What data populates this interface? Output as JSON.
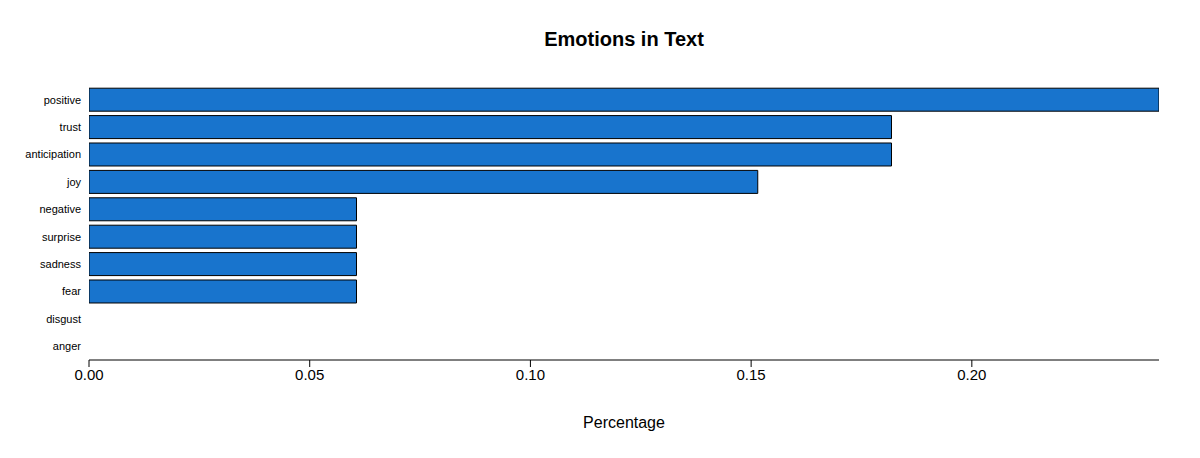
{
  "chart_data": {
    "type": "bar",
    "title": "Emotions in Text",
    "orientation": "horizontal",
    "categories": [
      "positive",
      "trust",
      "anticipation",
      "joy",
      "negative",
      "surprise",
      "sadness",
      "fear",
      "disgust",
      "anger"
    ],
    "values": [
      0.2424,
      0.1818,
      0.1818,
      0.1515,
      0.0606,
      0.0606,
      0.0606,
      0.0606,
      0,
      0
    ],
    "color": "#1874cd",
    "xlabel": "Percentage",
    "xlim": [
      0,
      0.2424
    ],
    "xticks": [
      {
        "value": 0,
        "label": "0.00"
      },
      {
        "value": 0.05,
        "label": "0.05"
      },
      {
        "value": 0.1,
        "label": "0.10"
      },
      {
        "value": 0.15,
        "label": "0.15"
      },
      {
        "value": 0.2,
        "label": "0.20"
      }
    ],
    "grid": false
  }
}
